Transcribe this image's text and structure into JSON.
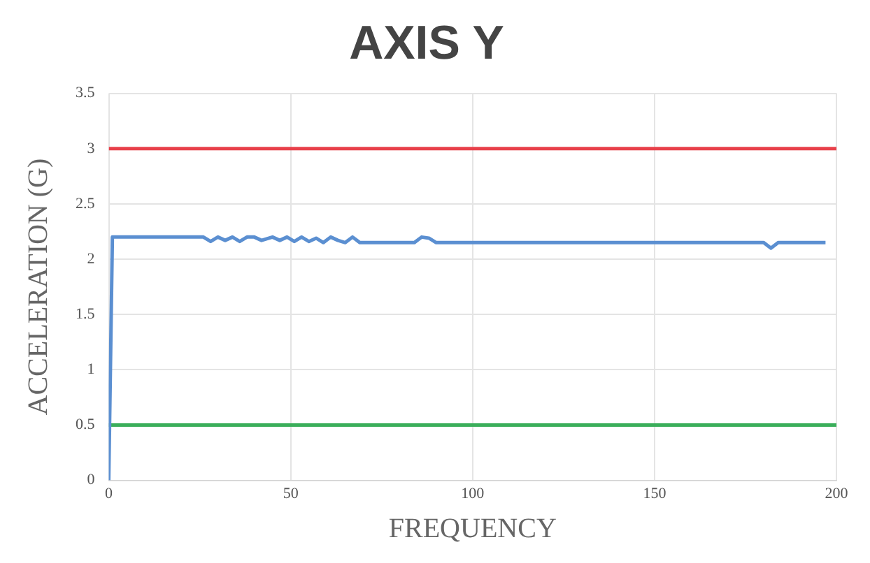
{
  "chart_data": {
    "type": "line",
    "title": "AXIS Y",
    "xlabel": "FREQUENCY",
    "ylabel": "ACCELERATION (G)",
    "xlim": [
      0,
      200
    ],
    "xticks": [
      0,
      50,
      100,
      150,
      200
    ],
    "ylim": [
      0,
      3.5
    ],
    "yticks": [
      0,
      0.5,
      1,
      1.5,
      2,
      2.5,
      3,
      3.5
    ],
    "grid": true,
    "legend": false,
    "marker": "none",
    "line_style": "solid",
    "series": [
      {
        "color": "#5b8fd1",
        "x": [
          0,
          1,
          26,
          28,
          30,
          32,
          34,
          36,
          38,
          40,
          42,
          45,
          47,
          49,
          51,
          53,
          55,
          57,
          59,
          61,
          63,
          65,
          67,
          69,
          72,
          84,
          86,
          88,
          90,
          180,
          182,
          184,
          197
        ],
        "values": [
          0,
          2.2,
          2.2,
          2.16,
          2.2,
          2.17,
          2.2,
          2.16,
          2.2,
          2.2,
          2.17,
          2.2,
          2.17,
          2.2,
          2.16,
          2.2,
          2.16,
          2.19,
          2.15,
          2.2,
          2.17,
          2.15,
          2.2,
          2.15,
          2.15,
          2.15,
          2.2,
          2.19,
          2.15,
          2.15,
          2.1,
          2.15,
          2.15
        ]
      },
      {
        "color": "#e8404a",
        "x": [
          0,
          200
        ],
        "values": [
          3,
          3
        ]
      },
      {
        "color": "#3aae5a",
        "x": [
          0,
          200
        ],
        "values": [
          0.5,
          0.5
        ]
      }
    ]
  }
}
